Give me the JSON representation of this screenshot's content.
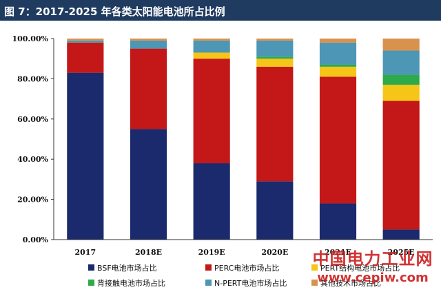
{
  "title": "图 7：2017-2025 年各类太阳能电池所占比例",
  "watermark": {
    "text": "中国电力工业网",
    "url": "www.cepiw.com"
  },
  "chart_data": {
    "type": "bar",
    "stacked": true,
    "title": "图 7：2017-2025 年各类太阳能电池所占比例",
    "xlabel": "",
    "ylabel": "",
    "ylim": [
      0,
      100
    ],
    "y_ticks": [
      "0.00%",
      "20.00%",
      "40.00%",
      "60.00%",
      "80.00%",
      "100.00%"
    ],
    "categories": [
      "2017",
      "2018E",
      "2019E",
      "2020E",
      "2021E",
      "2025E"
    ],
    "legend_position": "bottom",
    "grid": false,
    "series": [
      {
        "name": "BSF电池市场占比",
        "color": "#1a2a6c",
        "values": [
          83,
          55,
          38,
          29,
          18,
          5
        ]
      },
      {
        "name": "PERC电池市场占比",
        "color": "#c41717",
        "values": [
          15,
          40,
          52,
          57,
          63,
          64
        ]
      },
      {
        "name": "PERT结构电池市场占比",
        "color": "#f5c518",
        "values": [
          0,
          0,
          3,
          4,
          5,
          8
        ]
      },
      {
        "name": "背接触电池市场占比",
        "color": "#2eaa4a",
        "values": [
          0,
          0,
          0,
          1,
          1,
          5
        ]
      },
      {
        "name": "N-PERT电池市场占比",
        "color": "#4d96b5",
        "values": [
          1,
          4,
          6,
          8,
          11,
          12
        ]
      },
      {
        "name": "其他技术市场占比",
        "color": "#d9924e",
        "values": [
          1,
          1,
          1,
          1,
          2,
          6
        ]
      }
    ]
  }
}
